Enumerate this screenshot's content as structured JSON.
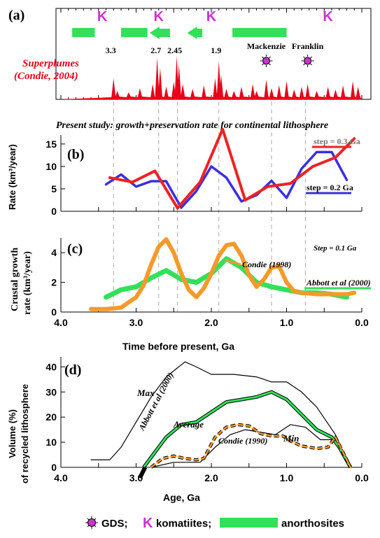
{
  "chart_data": [
    {
      "panel_label": "(a)",
      "type": "area",
      "series": [
        {
          "name": "Superplumes",
          "annotation": "Superplumes (Condie, 2004)",
          "color": "#e8001a"
        }
      ],
      "superplume_labels": [
        {
          "t": 3.3,
          "text": "3.3"
        },
        {
          "t": 2.7,
          "text": "2.7"
        },
        {
          "t": 2.45,
          "text": "2.45"
        },
        {
          "t": 1.9,
          "text": "1.9"
        }
      ],
      "gds_events": [
        {
          "name": "Mackenzie",
          "t": 1.27
        },
        {
          "name": "Franklin",
          "t": 0.72
        }
      ],
      "komatiites_t": [
        3.45,
        2.7,
        2.0,
        0.45
      ],
      "anorthosites": [
        {
          "from": 3.85,
          "to": 3.55
        },
        {
          "from": 3.2,
          "to": 2.85,
          "arrow": false
        },
        {
          "from": 2.55,
          "to": 2.82,
          "arrow": true
        },
        {
          "from": 2.12,
          "to": 2.32,
          "arrow": true
        },
        {
          "from": 1.72,
          "to": 1.0
        }
      ]
    },
    {
      "panel_label": "(b)",
      "type": "line",
      "title": "Present study: growth+preservation rate for continental lithosphere",
      "ylabel": "Rate (km³/year)",
      "ylim": [
        0,
        17
      ],
      "yticks": [
        "0",
        "5",
        "10",
        "15"
      ],
      "series": [
        {
          "name": "step = 0.3 Ga",
          "color": "#ee2222",
          "x": [
            3.35,
            3.05,
            2.75,
            2.45,
            2.15,
            1.85,
            1.55,
            1.25,
            0.95,
            0.65,
            0.35,
            0.1
          ],
          "y": [
            7.5,
            6.5,
            9.0,
            0.7,
            6.5,
            18.3,
            2.5,
            5.5,
            6.2,
            10.0,
            12.0,
            16.2
          ]
        },
        {
          "name": "step = 0.2 Ga",
          "color": "#3a2fe0",
          "x": [
            3.4,
            3.2,
            3.0,
            2.8,
            2.6,
            2.4,
            2.2,
            2.0,
            1.8,
            1.6,
            1.4,
            1.2,
            1.0,
            0.8,
            0.6,
            0.4,
            0.2
          ],
          "y": [
            6.0,
            8.2,
            5.5,
            6.7,
            6.7,
            0.8,
            4.5,
            10.0,
            7.5,
            2.2,
            3.6,
            6.8,
            3.0,
            9.5,
            13.2,
            13.2,
            7.0
          ]
        }
      ]
    },
    {
      "panel_label": "(c)",
      "type": "line",
      "ylabel": "Crustal growth rate (km³/year)",
      "xlabel": "Time before present, Ga",
      "annotation": "Step = 0.1 Ga",
      "ylim": [
        0,
        5
      ],
      "yticks": [
        "0",
        "2",
        "4"
      ],
      "xticks": [
        "4.0",
        "3.0",
        "2.0",
        "1.0",
        "0.0"
      ],
      "series": [
        {
          "name": "Condie (1998)",
          "color": "#f59a2a",
          "x": [
            3.6,
            3.4,
            3.2,
            3.0,
            2.9,
            2.8,
            2.7,
            2.6,
            2.5,
            2.4,
            2.3,
            2.2,
            2.1,
            2.0,
            1.9,
            1.8,
            1.7,
            1.6,
            1.5,
            1.4,
            1.3,
            1.2,
            1.1,
            1.0,
            0.9,
            0.8,
            0.6,
            0.4,
            0.2,
            0.1
          ],
          "y": [
            0.2,
            0.2,
            0.3,
            1.0,
            1.8,
            3.2,
            4.4,
            4.9,
            4.0,
            2.6,
            1.5,
            1.0,
            1.6,
            2.6,
            3.8,
            4.5,
            4.6,
            3.8,
            2.5,
            1.7,
            2.2,
            3.0,
            3.1,
            2.0,
            1.4,
            1.3,
            1.2,
            1.2,
            1.2,
            1.3
          ]
        },
        {
          "name": "Abbott et al (2000)",
          "color": "#33e05a",
          "x": [
            3.4,
            3.2,
            3.0,
            2.8,
            2.6,
            2.4,
            2.2,
            2.0,
            1.8,
            1.6,
            1.4,
            1.2,
            1.0,
            0.8,
            0.6,
            0.4,
            0.2
          ],
          "y": [
            1.0,
            1.5,
            1.7,
            2.3,
            2.8,
            2.2,
            2.0,
            2.6,
            3.6,
            3.0,
            2.0,
            1.7,
            1.5,
            1.3,
            1.3,
            1.2,
            1.0
          ]
        }
      ]
    },
    {
      "panel_label": "(d)",
      "type": "line",
      "ylabel": "Volume (%) of recycled lithosphere",
      "xlabel": "Age, Ga",
      "ylim": [
        0,
        44
      ],
      "yticks": [
        "0",
        "10",
        "20",
        "30",
        "40"
      ],
      "xticks": [
        "4.0",
        "3.0",
        "2.0",
        "1.0",
        "0.0"
      ],
      "series": [
        {
          "name": "Max",
          "color": "#000000",
          "x": [
            3.6,
            3.35,
            3.2,
            3.0,
            2.8,
            2.6,
            2.35,
            2.2,
            2.0,
            1.7,
            1.4,
            1.2,
            1.0,
            0.8,
            0.6,
            0.35,
            0.2
          ],
          "y": [
            3,
            3,
            8,
            18,
            28,
            36,
            42,
            40,
            37,
            37,
            36,
            34,
            34,
            30,
            24,
            13,
            3
          ]
        },
        {
          "name": "Average",
          "color": "#33e05a",
          "x": [
            2.9,
            2.8,
            2.6,
            2.4,
            2.2,
            2.0,
            1.8,
            1.6,
            1.4,
            1.2,
            1.0,
            0.8,
            0.6,
            0.4,
            0.3,
            0.15
          ],
          "y": [
            0,
            4,
            12,
            17,
            18,
            22,
            26,
            27,
            28,
            30,
            27,
            21,
            15,
            12,
            8,
            0
          ]
        },
        {
          "name": "Min",
          "color": "#000000",
          "x": [
            2.8,
            2.5,
            2.3,
            2.15,
            1.95,
            1.75,
            1.55,
            1.35,
            1.15,
            0.95,
            0.75,
            0.55,
            0.4,
            0.3,
            0.15
          ],
          "y": [
            0,
            2,
            2,
            2,
            8,
            13,
            15,
            14,
            13,
            17,
            16,
            11,
            11,
            8,
            0
          ]
        },
        {
          "name": "Condie (1990)",
          "color": "#f59a2a",
          "x": [
            2.8,
            2.65,
            2.5,
            2.35,
            2.2,
            2.1,
            1.95,
            1.8,
            1.65,
            1.5,
            1.35,
            1.2,
            1.05,
            0.95,
            0.8,
            0.6,
            0.45,
            0.35,
            0.15
          ],
          "y": [
            0,
            3.5,
            4.5,
            3.5,
            3,
            3.5,
            12,
            16,
            17,
            16.5,
            13.5,
            12.5,
            12.5,
            10.5,
            8.5,
            7.5,
            8,
            12,
            0
          ]
        }
      ],
      "annotation": "Abbott et al (2000)"
    }
  ],
  "legend": {
    "gds": "GDS;",
    "komatiites": "komatiites;",
    "anorthosites": "anorthosites",
    "komatiite_glyph": "K"
  },
  "colors": {
    "red": "#e8001a",
    "blue": "#3a2fe0",
    "green": "#33e05a",
    "orange": "#f59a2a",
    "magenta": "#cc33cc"
  }
}
